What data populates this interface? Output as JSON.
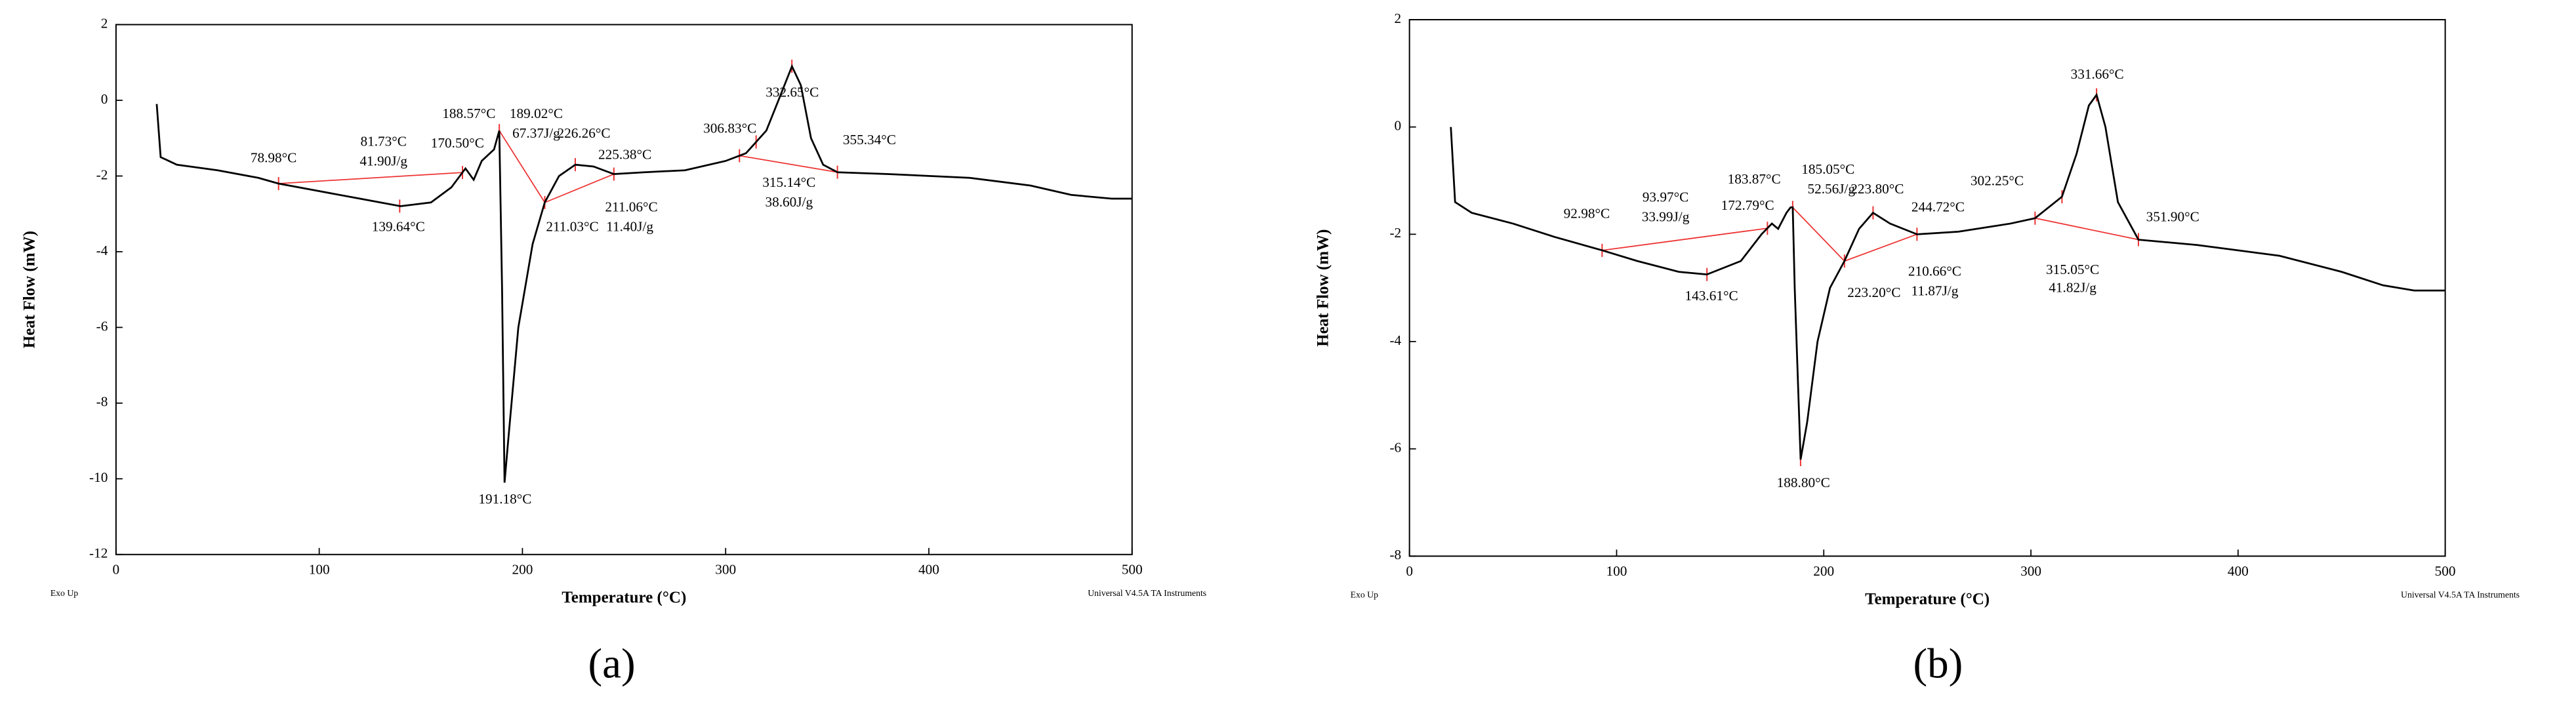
{
  "chart_data": [
    {
      "type": "line",
      "x_label": "Temperature (°C)",
      "y_label": "Heat Flow (mW)",
      "color": "#000000",
      "x": [
        20,
        22,
        30,
        50,
        70,
        80,
        100,
        120,
        140,
        155,
        165,
        172,
        176,
        180,
        184,
        186,
        188.6,
        190,
        191.2,
        193,
        198,
        205,
        211,
        218,
        226,
        235,
        245,
        260,
        280,
        300,
        310,
        320,
        326,
        332.6,
        337,
        342,
        348,
        355,
        380,
        420,
        450,
        470,
        490,
        500
      ],
      "values": [
        -0.1,
        -1.5,
        -1.7,
        -1.85,
        -2.05,
        -2.2,
        -2.4,
        -2.6,
        -2.8,
        -2.7,
        -2.3,
        -1.8,
        -2.1,
        -1.6,
        -1.4,
        -1.3,
        -0.8,
        -5,
        -10.1,
        -9,
        -6,
        -3.8,
        -2.7,
        -2.0,
        -1.7,
        -1.75,
        -1.95,
        -1.9,
        -1.85,
        -1.6,
        -1.4,
        -0.8,
        0,
        0.9,
        0.4,
        -1.0,
        -1.7,
        -1.9,
        -1.95,
        -2.05,
        -2.25,
        -2.5,
        -2.6,
        -2.6
      ],
      "xlim": [
        0,
        500
      ],
      "xticks": [
        0,
        100,
        200,
        300,
        400,
        500
      ],
      "ylim": [
        -12,
        2
      ],
      "yticks": [
        -12,
        -10,
        -8,
        -6,
        -4,
        -2,
        0,
        2
      ],
      "grid": false,
      "annotations": [
        "78.98°C",
        "81.73°C",
        "41.90J/g",
        "139.64°C",
        "170.50°C",
        "188.57°C",
        "189.02°C",
        "67.37J/g",
        "226.26°C",
        "225.38°C",
        "211.06°C",
        "211.03°C",
        "11.40J/g",
        "306.83°C",
        "332.65°C",
        "355.34°C",
        "315.14°C",
        "38.60J/g",
        "191.18°C"
      ],
      "note_left": "Exo Up",
      "note_right": "Universal V4.5A TA Instruments",
      "panel_label": "(a)"
    },
    {
      "type": "line",
      "x_label": "Temperature (°C)",
      "y_label": "Heat Flow (mW)",
      "color": "#000000",
      "x": [
        20,
        22,
        30,
        50,
        70,
        93,
        110,
        130,
        143.6,
        160,
        170,
        175,
        178,
        182,
        184,
        185,
        186,
        188.8,
        192,
        197,
        203,
        210,
        217,
        223.8,
        232,
        245,
        265,
        290,
        302,
        315,
        322,
        328,
        331.7,
        336,
        342,
        351.9,
        380,
        420,
        450,
        470,
        485,
        500
      ],
      "values": [
        0,
        -1.4,
        -1.6,
        -1.8,
        -2.05,
        -2.3,
        -2.5,
        -2.7,
        -2.75,
        -2.5,
        -2.0,
        -1.8,
        -1.9,
        -1.6,
        -1.5,
        -1.5,
        -3,
        -6.2,
        -5.5,
        -4,
        -3.0,
        -2.5,
        -1.9,
        -1.6,
        -1.8,
        -2.0,
        -1.95,
        -1.8,
        -1.7,
        -1.3,
        -0.5,
        0.4,
        0.6,
        0,
        -1.4,
        -2.1,
        -2.2,
        -2.4,
        -2.7,
        -2.95,
        -3.05,
        -3.05
      ],
      "xlim": [
        0,
        500
      ],
      "xticks": [
        0,
        100,
        200,
        300,
        400,
        500
      ],
      "ylim": [
        -8,
        2
      ],
      "yticks": [
        -8,
        -6,
        -4,
        -2,
        0,
        2
      ],
      "grid": false,
      "annotations": [
        "92.98°C",
        "93.97°C",
        "33.99J/g",
        "172.79°C",
        "183.87°C",
        "185.05°C",
        "52.56J/g",
        "223.80°C",
        "244.72°C",
        "302.25°C",
        "331.66°C",
        "351.90°C",
        "143.61°C",
        "223.20°C",
        "210.66°C",
        "11.87J/g",
        "315.05°C",
        "41.82J/g",
        "188.80°C"
      ],
      "note_left": "Exo Up",
      "note_right": "Universal V4.5A TA Instruments",
      "panel_label": "(b)"
    }
  ]
}
